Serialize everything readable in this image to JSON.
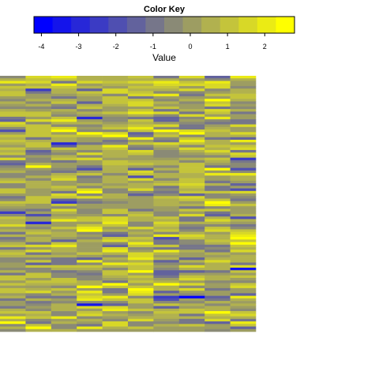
{
  "chart_data": {
    "type": "heatmap",
    "title": "",
    "n_rows": 100,
    "n_cols": 10,
    "dendrograms": false,
    "row_labels_visible": false,
    "col_labels_visible": false,
    "color_key": {
      "title": "Color Key",
      "label": "Value",
      "low_color": "#0000ff",
      "mid_color": "#808080",
      "high_color": "#ffff00",
      "range": [
        -4.2,
        2.8
      ],
      "bins": 14,
      "ticks": [
        -4,
        -3,
        -2,
        -1,
        0,
        1,
        2
      ],
      "tick_labels": [
        "-4",
        "-3",
        "-2",
        "-1",
        "0",
        "1",
        "2"
      ]
    },
    "value_distribution": {
      "approx_mean": 0.3,
      "approx_sd": 0.9,
      "min": -4.1,
      "max": 2.7
    },
    "notable_cells": [
      {
        "row": 86,
        "col": 7,
        "value": -4.1
      },
      {
        "row": 75,
        "col": 9,
        "value": -3.5
      },
      {
        "row": 89,
        "col": 3,
        "value": -3.3
      },
      {
        "row": 26,
        "col": 2,
        "value": -3.0
      },
      {
        "row": 57,
        "col": 1,
        "value": -2.9
      }
    ]
  }
}
